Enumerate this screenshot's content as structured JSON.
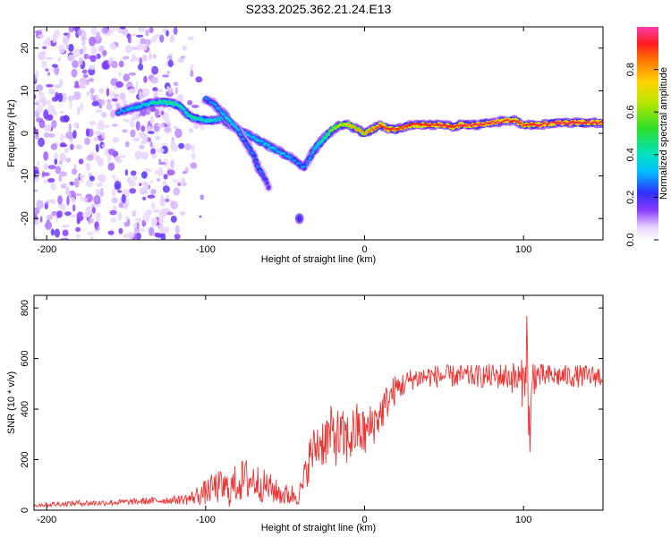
{
  "title": "S233.2025.362.21.24.E13",
  "chart_data": [
    {
      "type": "heatmap",
      "name": "spectrogram",
      "xlabel": "Height of straight line (km)",
      "ylabel": "Frequency (Hz)",
      "xlim": [
        -208,
        150
      ],
      "ylim": [
        -25,
        25
      ],
      "xticks": [
        -200,
        -100,
        0,
        100
      ],
      "yticks": [
        -20,
        -10,
        0,
        10,
        20
      ],
      "tracks": [
        {
          "name": "main-doppler-track",
          "x": [
            -155,
            -145,
            -135,
            -128,
            -120,
            -115,
            -110,
            -100,
            -95,
            -90,
            -85,
            -80,
            -75,
            -70,
            -65,
            -60,
            -55,
            -50,
            -45,
            -42,
            -38,
            -35,
            -30,
            -25,
            -20,
            -15,
            -10,
            -5,
            0,
            5,
            10,
            15,
            20,
            30,
            40,
            50,
            55,
            60,
            70,
            80,
            90,
            95,
            100,
            105,
            110,
            120,
            130,
            140,
            150
          ],
          "y": [
            5,
            6,
            7,
            7.5,
            7,
            6,
            4,
            3,
            3,
            3.5,
            2,
            1,
            0,
            -1,
            -2,
            -3,
            -4,
            -5,
            -6,
            -7,
            -8,
            -6,
            -3,
            -1,
            1,
            2,
            2,
            1,
            0,
            1,
            2,
            1,
            1,
            2,
            2,
            2,
            1.5,
            2,
            2,
            2.5,
            3,
            3,
            2,
            2,
            2,
            2.5,
            2.5,
            2.5,
            2.5
          ],
          "amplitude": [
            0.3,
            0.35,
            0.4,
            0.45,
            0.45,
            0.4,
            0.45,
            0.4,
            0.4,
            0.35,
            0.3,
            0.3,
            0.35,
            0.35,
            0.35,
            0.35,
            0.35,
            0.35,
            0.3,
            0.3,
            0.3,
            0.3,
            0.4,
            0.5,
            0.6,
            0.7,
            0.75,
            0.8,
            0.8,
            0.85,
            0.9,
            0.9,
            0.9,
            0.92,
            0.92,
            0.95,
            0.9,
            0.95,
            0.95,
            0.95,
            0.95,
            0.9,
            0.9,
            0.92,
            0.95,
            0.95,
            0.95,
            0.95,
            0.95
          ]
        },
        {
          "name": "secondary-branch",
          "x": [
            -100,
            -95,
            -90,
            -85,
            -80,
            -75,
            -70,
            -67,
            -62,
            -60
          ],
          "y": [
            8,
            7,
            5,
            3,
            1,
            -2,
            -5,
            -8,
            -11,
            -13
          ],
          "amplitude": [
            0.3,
            0.3,
            0.35,
            0.4,
            0.35,
            0.3,
            0.3,
            0.3,
            0.25,
            0.2
          ]
        },
        {
          "name": "isolated-blob",
          "x": [
            -41
          ],
          "y": [
            -20
          ],
          "amplitude": [
            0.2
          ]
        }
      ],
      "noise_region_km": [
        -208,
        -110
      ],
      "colorbar": {
        "label": "Normalized spectral amplitude",
        "range": [
          0.0,
          1.0
        ],
        "ticks": [
          "0.0",
          "0.2",
          "0.4",
          "0.6",
          "0.8"
        ]
      }
    },
    {
      "type": "line",
      "name": "snr",
      "xlabel": "Height of straight line (km)",
      "ylabel": "SNR (10 * v/v)",
      "xlim": [
        -208,
        150
      ],
      "ylim": [
        0,
        850
      ],
      "xticks": [
        -200,
        -100,
        0,
        100
      ],
      "yticks": [
        0,
        200,
        400,
        600,
        800
      ],
      "color": "#ee3333",
      "x": [
        -208,
        -200,
        -190,
        -180,
        -170,
        -160,
        -150,
        -140,
        -130,
        -120,
        -110,
        -105,
        -100,
        -95,
        -90,
        -85,
        -80,
        -75,
        -70,
        -65,
        -60,
        -55,
        -50,
        -45,
        -40,
        -35,
        -30,
        -25,
        -20,
        -15,
        -10,
        -5,
        0,
        5,
        10,
        15,
        20,
        25,
        30,
        40,
        50,
        60,
        70,
        80,
        90,
        95,
        100,
        102,
        104,
        106,
        110,
        120,
        130,
        140,
        150
      ],
      "y": [
        20,
        22,
        25,
        28,
        28,
        30,
        32,
        35,
        38,
        40,
        45,
        60,
        70,
        90,
        90,
        80,
        110,
        120,
        120,
        100,
        90,
        70,
        60,
        60,
        70,
        200,
        260,
        280,
        300,
        280,
        280,
        320,
        300,
        340,
        380,
        440,
        480,
        500,
        520,
        530,
        530,
        530,
        530,
        530,
        530,
        520,
        500,
        660,
        260,
        540,
        530,
        530,
        530,
        530,
        530
      ],
      "amplitude": [
        10,
        10,
        10,
        12,
        12,
        12,
        12,
        14,
        15,
        16,
        25,
        40,
        50,
        60,
        70,
        70,
        80,
        90,
        80,
        70,
        60,
        50,
        45,
        45,
        50,
        90,
        100,
        110,
        120,
        120,
        110,
        110,
        100,
        90,
        80,
        70,
        60,
        50,
        45,
        45,
        45,
        45,
        45,
        50,
        55,
        70,
        100,
        150,
        150,
        90,
        50,
        45,
        45,
        45,
        45
      ]
    }
  ]
}
